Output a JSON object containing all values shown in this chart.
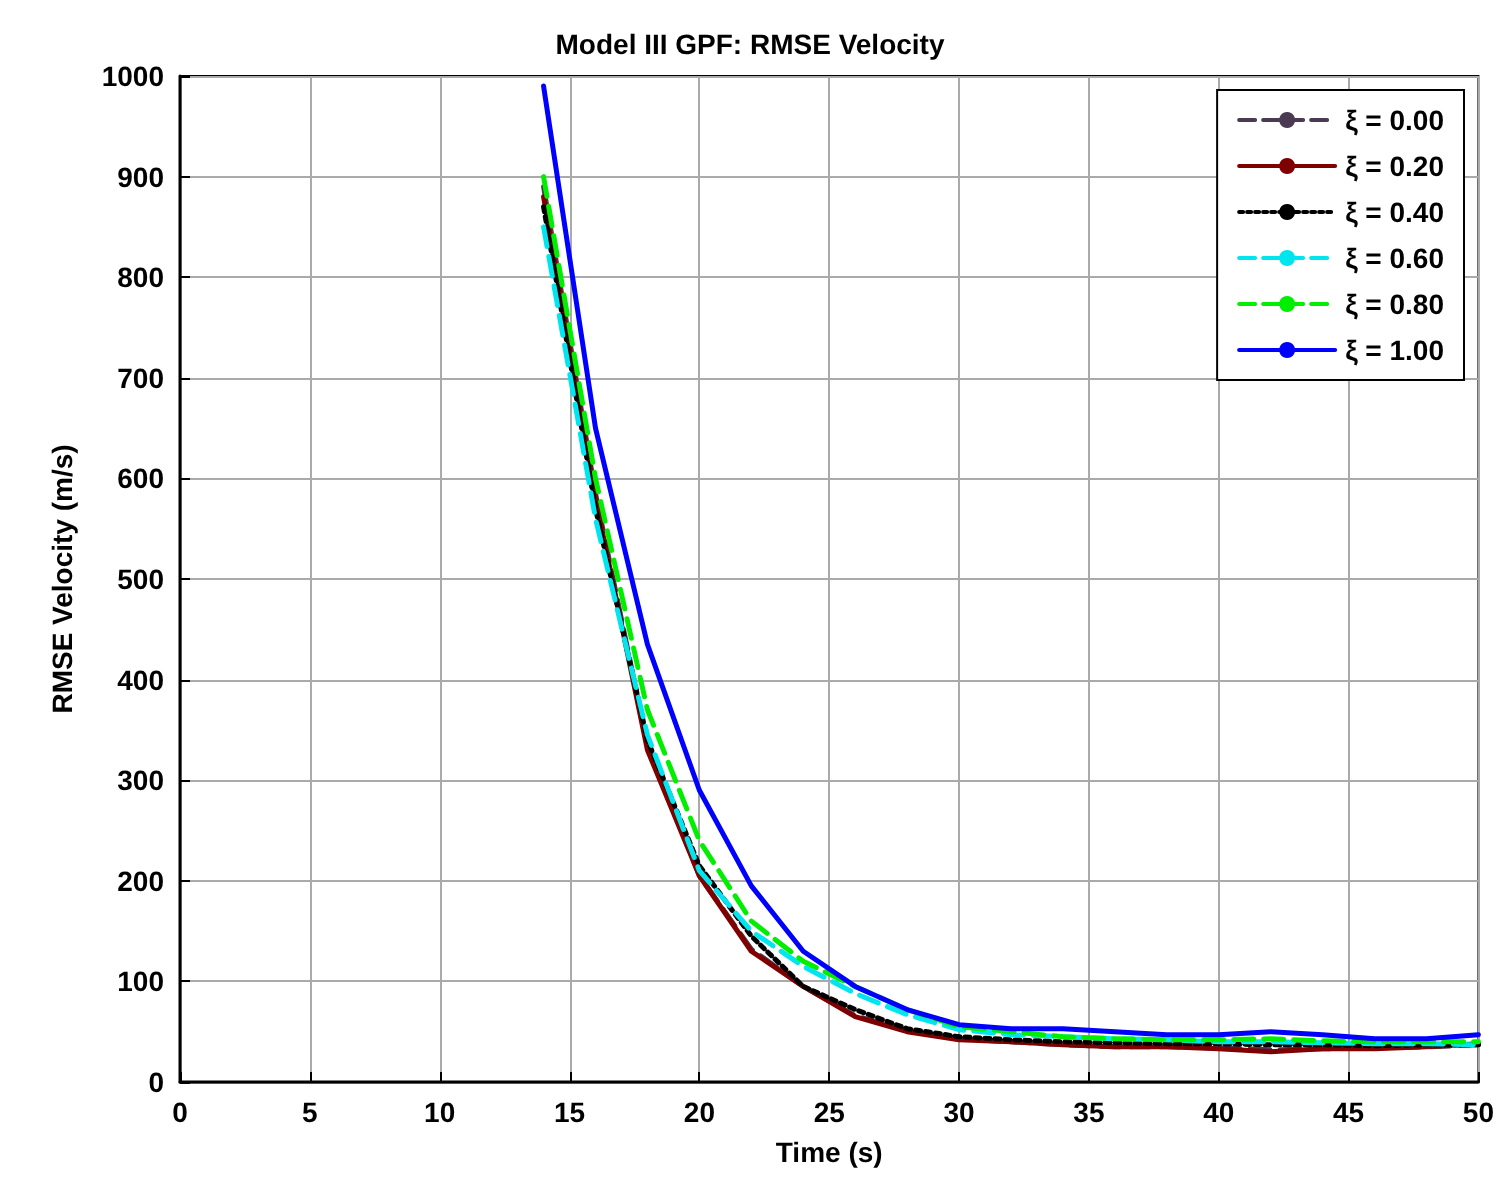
{
  "chart_data": {
    "type": "line",
    "title": "Model III GPF: RMSE Velocity",
    "xlabel": "Time (s)",
    "ylabel": "RMSE Velocity (m/s)",
    "x": [
      14,
      16,
      18,
      20,
      22,
      24,
      26,
      28,
      30,
      32,
      34,
      36,
      38,
      40,
      42,
      44,
      46,
      48,
      50
    ],
    "series": [
      {
        "name": "ξ = 0.00",
        "color": "#4b3a52",
        "line_style": "dashed",
        "values": [
          890,
          585,
          335,
          205,
          132,
          95,
          66,
          51,
          43,
          40,
          37,
          35,
          35,
          34,
          32,
          33,
          34,
          35,
          37
        ]
      },
      {
        "name": "ξ = 0.20",
        "color": "#800000",
        "line_style": "solid",
        "values": [
          880,
          580,
          330,
          205,
          130,
          95,
          65,
          50,
          42,
          40,
          37,
          35,
          35,
          33,
          30,
          33,
          33,
          35,
          38
        ]
      },
      {
        "name": "ξ = 0.40",
        "color": "#000000",
        "line_style": "dotted",
        "values": [
          870,
          570,
          340,
          215,
          145,
          95,
          72,
          53,
          45,
          42,
          40,
          39,
          38,
          38,
          37,
          37,
          36,
          37,
          37
        ]
      },
      {
        "name": "ξ = 0.60",
        "color": "#00e5ee",
        "line_style": "dashed",
        "values": [
          850,
          560,
          345,
          210,
          150,
          115,
          88,
          67,
          52,
          47,
          45,
          43,
          42,
          40,
          40,
          39,
          38,
          38,
          37
        ]
      },
      {
        "name": "ξ = 0.80",
        "color": "#00ee00",
        "line_style": "dashed",
        "values": [
          900,
          600,
          370,
          240,
          160,
          120,
          95,
          72,
          55,
          50,
          45,
          43,
          42,
          42,
          43,
          41,
          40,
          40,
          40
        ]
      },
      {
        "name": "ξ = 1.00",
        "color": "#0000ff",
        "line_style": "solid",
        "values": [
          990,
          650,
          435,
          290,
          195,
          130,
          95,
          72,
          57,
          53,
          53,
          50,
          47,
          47,
          50,
          47,
          43,
          43,
          47
        ]
      }
    ],
    "xlim": [
      0,
      50
    ],
    "xticks": [
      0,
      5,
      10,
      15,
      20,
      25,
      30,
      35,
      40,
      45,
      50
    ],
    "ylim": [
      0,
      1000
    ],
    "yticks": [
      0,
      100,
      200,
      300,
      400,
      500,
      600,
      700,
      800,
      900,
      1000
    ],
    "grid": true,
    "legend": "top right",
    "marker": "none"
  }
}
